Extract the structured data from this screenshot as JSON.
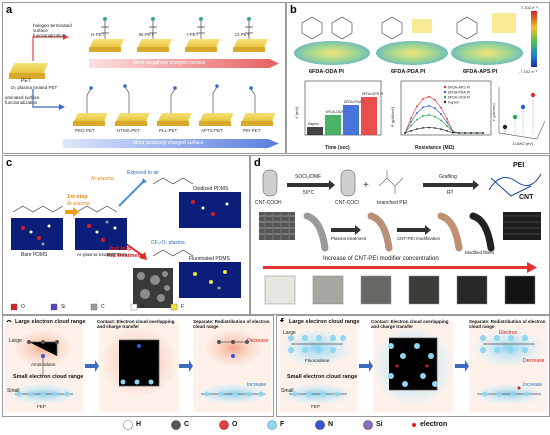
{
  "panels": {
    "a": {
      "label": "a",
      "top_chips": [
        "H-PET",
        "Br-PET",
        "I-PET",
        "Cl-PET"
      ],
      "bottom_chips": [
        "PEG-PET",
        "HTMS-PET",
        "PLL-PET",
        "APTS-PET",
        "PEI-PET"
      ],
      "base_text": "PET",
      "plasma_text": "O₂ plasma treated PET",
      "halogen_text": "halogen-terminated surface functionalization",
      "amine_text": "aminated surface functionalization",
      "neg_arrow": "More negatively charged surface",
      "pos_arrow": "More positively charged surface"
    },
    "b": {
      "label": "b",
      "molecules": [
        "6FDA-ODA PI",
        "6FDA-PDA PI",
        "6FDA-APS PI"
      ],
      "colorbar_max": "7.102 e⁻²",
      "colorbar_min": "-7.102 e⁻²",
      "chart1_ylabel": "V (mV)",
      "chart1_xlabel": "Time (sec)",
      "chart1_bars": [
        "Kapton",
        "6FDA-ODA PI",
        "6FDA-PDA PI",
        "6FDA-APS PI"
      ],
      "chart2_ylabel": "P (μW/cm²)",
      "chart2_xlabel": "Resistance (MΩ)",
      "chart2_legend": [
        "6FDA-APS PI",
        "6FDA-PDA PI",
        "6FDA-ODA PI",
        "Kapton"
      ],
      "chart3_ylabel": "P (μW/cm²)",
      "chart3_xlabel": "LUMO (eV)",
      "chart3_points": [
        "6FDA-APS PI",
        "6FDA-PDA PI",
        "6FDA-ODA PI",
        "Kapton"
      ],
      "colors": {
        "apsc": "#e63030",
        "pdac": "#2a5cd6",
        "odac": "#2aa64a",
        "kapton": "#222222"
      }
    },
    "c": {
      "label": "c",
      "step1": "1st step",
      "step1_sub": "Ar-plasma",
      "step2": "2nd step",
      "step2_sub": "RIE treatment",
      "exposed": "Exposed to air",
      "ar_plasma": "Ar-plasma",
      "cf4_plasma": "CF₄-O₂ plasma",
      "bare": "Bare PDMS",
      "ar_treated": "Ar-plasma treated PDMS",
      "oxidized": "Oxidized PDMS",
      "fluorinated": "Fluorinated PDMS",
      "legend": [
        "O",
        "Si",
        "C",
        "H",
        "F"
      ],
      "legend_colors": [
        "#d61f1f",
        "#5b3cc4",
        "#9a9a9a",
        "#ffffff",
        "#f2e23a"
      ]
    },
    "d": {
      "label": "d",
      "reagent": "SOCl₂/DMF",
      "temp": "50°C",
      "cnt_cooh": "CNT-COOH",
      "cnt_cocl": "CNT-COCl",
      "branched": "branched PEI",
      "grafting": "Grafting",
      "rt": "RT",
      "pei": "PEI",
      "cnt": "CNT",
      "plasma": "Plasma treatment",
      "cnt_pei_mod": "CNT-PEI modification",
      "modified": "Modified fibers",
      "increase": "Increase of CNT-PEI modifier concentration"
    },
    "e": {
      "label": "e",
      "large_range": "Large electron cloud range",
      "small_range": "Small electron cloud range",
      "contact": "Contact: Electron cloud overlapping and charge transfer",
      "separate": "Separate: Redistribution of electron cloud range",
      "large": "Large",
      "small": "Small",
      "polymer1": "Aminosilane",
      "polymer2": "FEP",
      "decrease": "Decrease",
      "increase": "Increase"
    },
    "f": {
      "label": "f",
      "large_range": "Large electron cloud range",
      "small_range": "Small electron cloud range",
      "contact": "Contact: Electron cloud overlapping and charge transfer",
      "separate": "Separate: Redistribution of electron cloud range",
      "large": "Large",
      "small": "Small",
      "polymer1": "Fluorosilane",
      "polymer2": "FEP",
      "decrease": "Decrease",
      "increase": "Increase",
      "electron": "Electron"
    }
  },
  "atom_legend": {
    "items": [
      "H",
      "C",
      "O",
      "F",
      "N",
      "Si"
    ],
    "colors": [
      "#ffffff",
      "#555555",
      "#e04040",
      "#8fd6f0",
      "#3b55d6",
      "#8a6fc4"
    ],
    "electron_label": "electron",
    "electron_color": "#e02020"
  }
}
